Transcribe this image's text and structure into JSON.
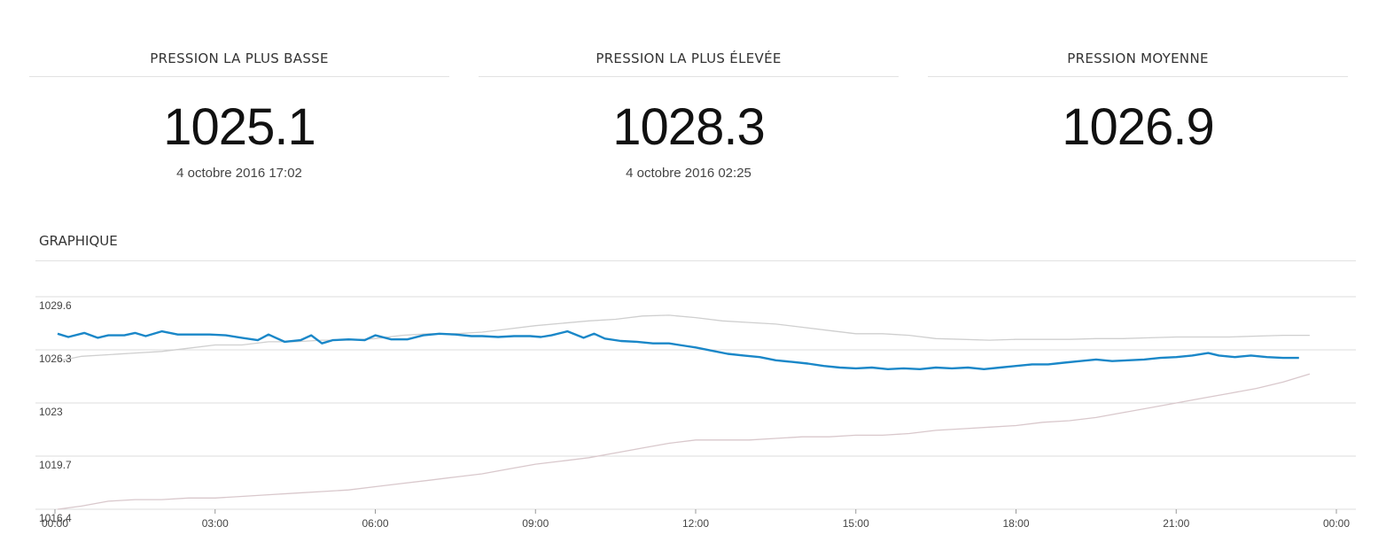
{
  "stats": [
    {
      "title": "PRESSION LA PLUS BASSE",
      "value": "1025.1",
      "date": "4 octobre 2016 17:02"
    },
    {
      "title": "PRESSION LA PLUS ÉLEVÉE",
      "value": "1028.3",
      "date": "4 octobre 2016 02:25"
    },
    {
      "title": "PRESSION MOYENNE",
      "value": "1026.9",
      "date": ""
    }
  ],
  "section_title": "GRAPHIQUE",
  "colors": {
    "main": "#1a87c8",
    "max": "#cfcfcf",
    "min": "#d9c8cc",
    "grid": "#dcdcdc"
  },
  "chart_data": {
    "type": "line",
    "xlabel": "",
    "ylabel": "",
    "xlim": [
      0,
      24
    ],
    "ylim": [
      1016.4,
      1029.6
    ],
    "y_ticks": [
      1029.6,
      1026.3,
      1023,
      1019.7,
      1016.4
    ],
    "x_ticks": [
      {
        "x": 0,
        "label": "00:00"
      },
      {
        "x": 3,
        "label": "03:00"
      },
      {
        "x": 6,
        "label": "06:00"
      },
      {
        "x": 9,
        "label": "09:00"
      },
      {
        "x": 12,
        "label": "12:00"
      },
      {
        "x": 15,
        "label": "15:00"
      },
      {
        "x": 18,
        "label": "18:00"
      },
      {
        "x": 21,
        "label": "21:00"
      },
      {
        "x": 24,
        "label": "00:00"
      }
    ],
    "grid": true,
    "legend": "none",
    "series": [
      {
        "x": [
          0.05,
          0.25,
          0.55,
          0.8,
          1.0,
          1.3,
          1.5,
          1.7,
          2.0,
          2.3,
          2.6,
          2.9,
          3.2,
          3.5,
          3.8,
          4.0,
          4.3,
          4.6,
          4.8,
          5.0,
          5.2,
          5.5,
          5.8,
          6.0,
          6.3,
          6.6,
          6.9,
          7.2,
          7.5,
          7.8,
          8.0,
          8.3,
          8.6,
          8.9,
          9.1,
          9.3,
          9.6,
          9.9,
          10.1,
          10.3,
          10.6,
          10.9,
          11.2,
          11.5,
          11.8,
          12.0,
          12.3,
          12.6,
          12.9,
          13.2,
          13.5,
          13.8,
          14.1,
          14.4,
          14.7,
          15.0,
          15.3,
          15.6,
          15.9,
          16.2,
          16.5,
          16.8,
          17.1,
          17.4,
          17.7,
          18.0,
          18.3,
          18.6,
          18.9,
          19.2,
          19.5,
          19.8,
          20.1,
          20.4,
          20.7,
          21.0,
          21.3,
          21.6,
          21.8,
          22.1,
          22.4,
          22.7,
          23.0,
          23.3
        ],
        "values": [
          1027.3,
          1027.1,
          1027.35,
          1027.05,
          1027.2,
          1027.2,
          1027.35,
          1027.15,
          1027.45,
          1027.25,
          1027.25,
          1027.25,
          1027.2,
          1027.05,
          1026.9,
          1027.25,
          1026.8,
          1026.9,
          1027.2,
          1026.7,
          1026.9,
          1026.95,
          1026.9,
          1027.2,
          1026.95,
          1026.95,
          1027.2,
          1027.3,
          1027.25,
          1027.15,
          1027.15,
          1027.1,
          1027.15,
          1027.15,
          1027.1,
          1027.2,
          1027.45,
          1027.05,
          1027.3,
          1027.0,
          1026.85,
          1026.8,
          1026.7,
          1026.7,
          1026.55,
          1026.45,
          1026.25,
          1026.05,
          1025.95,
          1025.85,
          1025.65,
          1025.55,
          1025.45,
          1025.3,
          1025.2,
          1025.15,
          1025.2,
          1025.1,
          1025.15,
          1025.1,
          1025.2,
          1025.15,
          1025.2,
          1025.1,
          1025.2,
          1025.3,
          1025.4,
          1025.4,
          1025.5,
          1025.6,
          1025.7,
          1025.6,
          1025.65,
          1025.7,
          1025.8,
          1025.85,
          1025.95,
          1026.1,
          1025.95,
          1025.85,
          1025.95,
          1025.85,
          1025.8,
          1025.8
        ]
      },
      {
        "x": [
          0.05,
          0.5,
          1.0,
          1.5,
          2.0,
          2.5,
          3.0,
          3.5,
          4.0,
          4.5,
          5.0,
          5.5,
          6.0,
          6.5,
          7.0,
          7.5,
          8.0,
          8.5,
          9.0,
          9.5,
          10.0,
          10.5,
          11.0,
          11.5,
          12.0,
          12.5,
          13.0,
          13.5,
          14.0,
          14.5,
          15.0,
          15.5,
          16.0,
          16.5,
          17.0,
          17.5,
          18.0,
          18.5,
          19.0,
          19.5,
          20.0,
          20.5,
          21.0,
          21.5,
          22.0,
          22.5,
          23.0,
          23.5
        ],
        "values": [
          1025.6,
          1025.9,
          1026.0,
          1026.1,
          1026.2,
          1026.4,
          1026.6,
          1026.6,
          1026.8,
          1026.8,
          1026.9,
          1026.9,
          1027.0,
          1027.2,
          1027.3,
          1027.3,
          1027.4,
          1027.6,
          1027.8,
          1027.95,
          1028.1,
          1028.2,
          1028.4,
          1028.45,
          1028.3,
          1028.1,
          1028.0,
          1027.9,
          1027.7,
          1027.5,
          1027.3,
          1027.3,
          1027.2,
          1027.0,
          1026.95,
          1026.9,
          1026.95,
          1026.95,
          1026.95,
          1027.0,
          1027.0,
          1027.05,
          1027.1,
          1027.1,
          1027.1,
          1027.15,
          1027.2,
          1027.2
        ]
      },
      {
        "x": [
          0.05,
          0.5,
          1.0,
          1.5,
          2.0,
          2.5,
          3.0,
          3.5,
          4.0,
          4.5,
          5.0,
          5.5,
          6.0,
          6.5,
          7.0,
          7.5,
          8.0,
          8.5,
          9.0,
          9.5,
          10.0,
          10.5,
          11.0,
          11.5,
          12.0,
          12.5,
          13.0,
          13.5,
          14.0,
          14.5,
          15.0,
          15.5,
          16.0,
          16.5,
          17.0,
          17.5,
          18.0,
          18.5,
          19.0,
          19.5,
          20.0,
          20.5,
          21.0,
          21.5,
          22.0,
          22.5,
          23.0,
          23.5
        ],
        "values": [
          1016.4,
          1016.6,
          1016.9,
          1017.0,
          1017.0,
          1017.1,
          1017.1,
          1017.2,
          1017.3,
          1017.4,
          1017.5,
          1017.6,
          1017.8,
          1018.0,
          1018.2,
          1018.4,
          1018.6,
          1018.9,
          1019.2,
          1019.4,
          1019.6,
          1019.9,
          1020.2,
          1020.5,
          1020.7,
          1020.7,
          1020.7,
          1020.8,
          1020.9,
          1020.9,
          1021.0,
          1021.0,
          1021.1,
          1021.3,
          1021.4,
          1021.5,
          1021.6,
          1021.8,
          1021.9,
          1022.1,
          1022.4,
          1022.7,
          1023.0,
          1023.3,
          1023.6,
          1023.9,
          1024.3,
          1024.8
        ]
      }
    ]
  }
}
